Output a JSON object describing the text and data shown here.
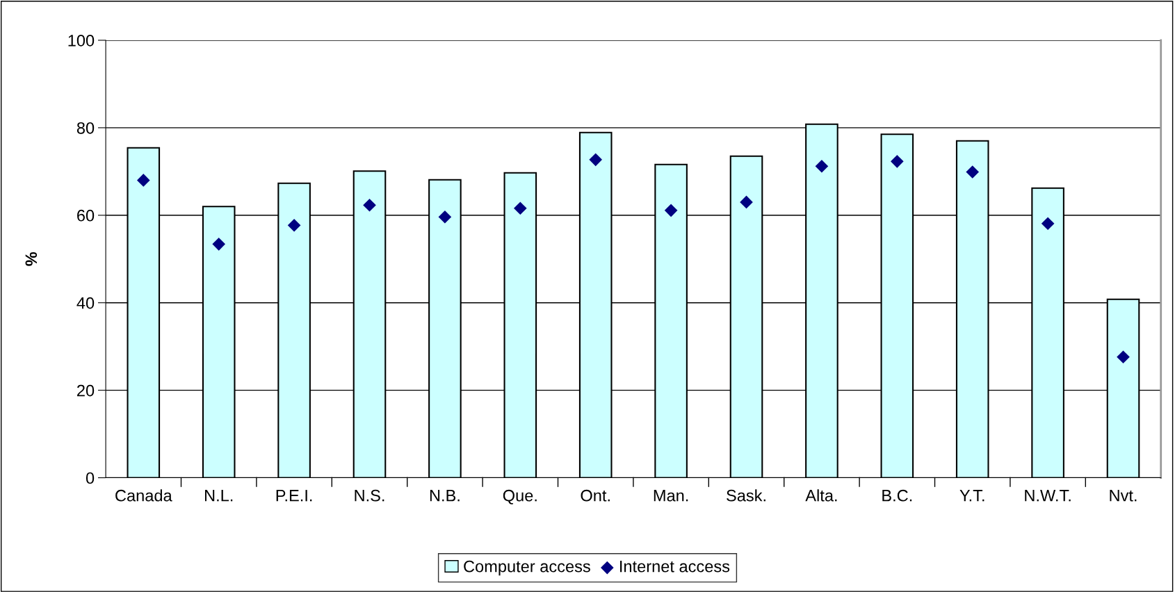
{
  "chart_data": {
    "type": "bar",
    "ylabel": "%",
    "categories": [
      "Canada",
      "N.L.",
      "P.E.I.",
      "N.S.",
      "N.B.",
      "Que.",
      "Ont.",
      "Man.",
      "Sask.",
      "Alta.",
      "B.C.",
      "Y.T.",
      "N.W.T.",
      "Nvt."
    ],
    "series": [
      {
        "name": "Computer access",
        "color": "#ccffff",
        "values": [
          75.4,
          62.0,
          67.3,
          70.1,
          68.1,
          69.7,
          78.9,
          71.6,
          73.5,
          80.8,
          78.5,
          77.0,
          66.2,
          40.8
        ]
      },
      {
        "name": "Internet access",
        "type": "scatter",
        "marker": "diamond",
        "color": "#000080",
        "values": [
          68.0,
          53.4,
          57.7,
          62.3,
          59.6,
          61.6,
          72.7,
          61.1,
          63.0,
          71.2,
          72.3,
          69.9,
          58.1,
          27.6
        ]
      }
    ],
    "ylim": [
      0,
      100
    ],
    "yticks": [
      0,
      20,
      40,
      60,
      80,
      100
    ],
    "grid": "y",
    "legend": "bottom"
  }
}
